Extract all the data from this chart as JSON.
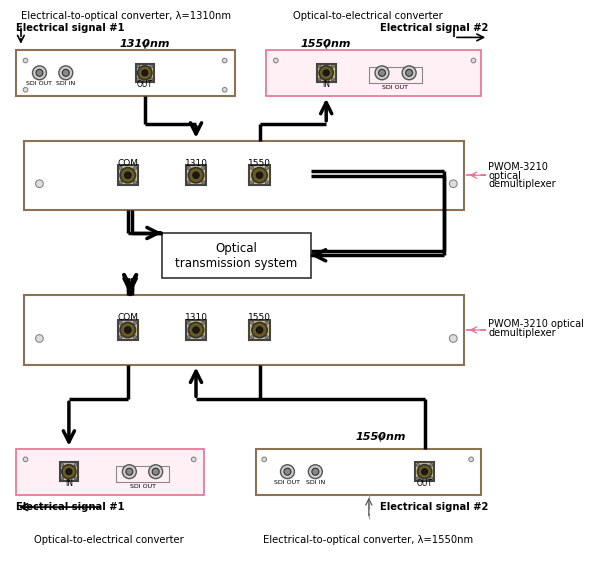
{
  "bg": "#ffffff",
  "brown": "#8B7355",
  "pink_edge": "#E87090",
  "pink_fill": "#FFF0F5",
  "lw_wire": 2.5,
  "dashed_color": "#FF69B4",
  "conn_body": "#C8C080",
  "conn_ring": "#6B5B20",
  "conn_dot": "#1a1a1a",
  "top_label_left": "Electrical-to-optical converter, λ=1310nm",
  "top_label_right": "Optical-to-electrical converter",
  "bot_label_left": "Optical-to-electrical converter",
  "bot_label_right": "Electrical-to-optical converter, λ=1550nm",
  "mux_label_top_1": "PWOM-3210",
  "mux_label_top_2": "optical",
  "mux_label_top_3": "demultiplexer",
  "mux_label_bot_1": "PWOM-3210 optical",
  "mux_label_bot_2": "demultiplexer",
  "ots_label": "Optical\ntransmission system",
  "sig1_top": "Electrical signal #1",
  "sig2_top": "Electrical signal #2",
  "sig1_bot": "Electrical signal #1",
  "sig2_bot": "Electrical signal #2",
  "label_1310": "1310nm",
  "label_1550_top": "1550nm",
  "label_1550_bot": "1550nm"
}
